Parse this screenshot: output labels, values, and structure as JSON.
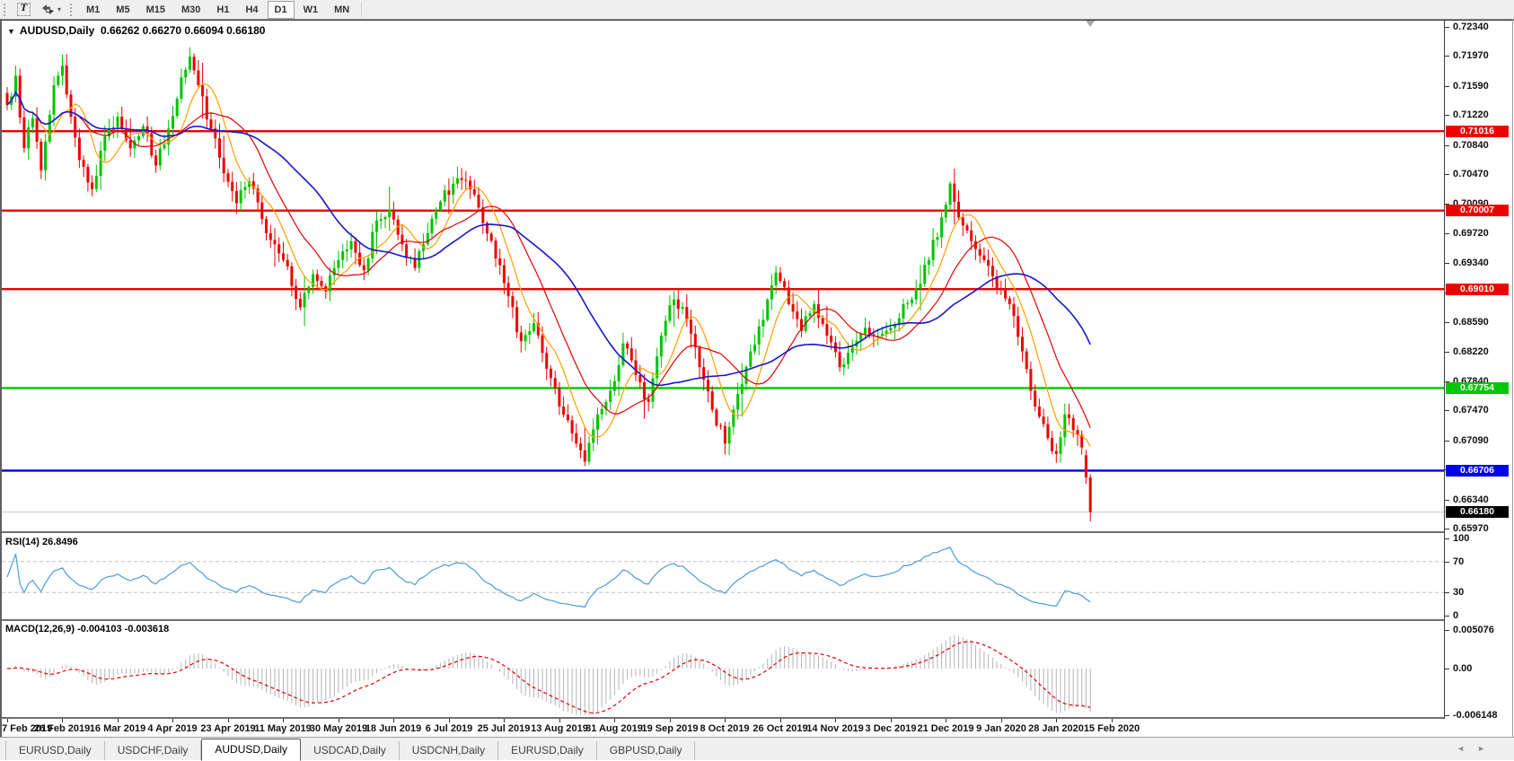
{
  "icons": {
    "text_tool_glyph": "T",
    "dropdown_caret": "▾",
    "collapse_arrow": "▼",
    "tab_scroll_left": "◄",
    "tab_scroll_right": "►"
  },
  "toolbar": {
    "timeframes": [
      {
        "label": "M1",
        "active": false
      },
      {
        "label": "M5",
        "active": false
      },
      {
        "label": "M15",
        "active": false
      },
      {
        "label": "M30",
        "active": false
      },
      {
        "label": "H1",
        "active": false
      },
      {
        "label": "H4",
        "active": false
      },
      {
        "label": "D1",
        "active": true
      },
      {
        "label": "W1",
        "active": false
      },
      {
        "label": "MN",
        "active": false
      }
    ]
  },
  "chart": {
    "symbol_period": "AUDUSD,Daily",
    "ohlc_text": "0.66262 0.66270 0.66094 0.66180"
  },
  "price_axis": {
    "ticks": [
      "0.72340",
      "0.71970",
      "0.71590",
      "0.71220",
      "0.70840",
      "0.70470",
      "0.70090",
      "0.69720",
      "0.69340",
      "0.68970",
      "0.68590",
      "0.68220",
      "0.67840",
      "0.67470",
      "0.67090",
      "0.66720",
      "0.66340",
      "0.65970"
    ]
  },
  "hlines": [
    {
      "price": 0.71016,
      "label": "0.71016",
      "color": "#ee0000"
    },
    {
      "price": 0.70007,
      "label": "0.70007",
      "color": "#ee0000"
    },
    {
      "price": 0.6901,
      "label": "0.69010",
      "color": "#ee0000"
    },
    {
      "price": 0.67754,
      "label": "0.67754",
      "color": "#00c800"
    },
    {
      "price": 0.66706,
      "label": "0.66706",
      "color": "#0000ee"
    }
  ],
  "current_price": {
    "label": "0.66180",
    "price": 0.6618,
    "line_color": "#c9c9c9",
    "box_color": "#000000"
  },
  "rsi": {
    "header": "RSI(14) 26.8496",
    "period": 14,
    "current": 26.8496,
    "axis_labels": [
      "100",
      "70",
      "30",
      "0"
    ],
    "axis_values": [
      100,
      70,
      30,
      0
    ],
    "dashed_levels": [
      70,
      30
    ],
    "line_color": "#4b9cd8"
  },
  "macd": {
    "header": "MACD(12,26,9) -0.004103 -0.003618",
    "fast": 12,
    "slow": 26,
    "signal": 9,
    "current_macd": -0.004103,
    "current_signal": -0.003618,
    "axis_labels": [
      "0.005076",
      "0.00",
      "-0.006148"
    ],
    "axis_values": [
      0.005076,
      0,
      -0.006148
    ],
    "histogram_color": "#b4b4b4",
    "signal_color": "#e00000"
  },
  "date_axis": [
    "7 Feb 2019",
    "26 Feb 2019",
    "16 Mar 2019",
    "4 Apr 2019",
    "23 Apr 2019",
    "11 May 2019",
    "30 May 2019",
    "18 Jun 2019",
    "6 Jul 2019",
    "25 Jul 2019",
    "13 Aug 2019",
    "31 Aug 2019",
    "19 Sep 2019",
    "8 Oct 2019",
    "26 Oct 2019",
    "14 Nov 2019",
    "3 Dec 2019",
    "21 Dec 2019",
    "9 Jan 2020",
    "28 Jan 2020",
    "15 Feb 2020"
  ],
  "tabs": [
    {
      "label": "EURUSD,Daily",
      "active": false
    },
    {
      "label": "USDCHF,Daily",
      "active": false
    },
    {
      "label": "AUDUSD,Daily",
      "active": true
    },
    {
      "label": "USDCAD,Daily",
      "active": false
    },
    {
      "label": "USDCNH,Daily",
      "active": false
    },
    {
      "label": "EURUSD,Daily",
      "active": false
    },
    {
      "label": "GBPUSD,Daily",
      "active": false
    }
  ],
  "chart_data": {
    "type": "candlestick",
    "symbol": "AUDUSD",
    "timeframe": "Daily",
    "ohlc_current": {
      "open": 0.66262,
      "high": 0.6627,
      "low": 0.66094,
      "close": 0.6618
    },
    "price_range": [
      0.6597,
      0.7234
    ],
    "num_candles": 256,
    "candles_per_date_interval": 13,
    "up_color": "#00c400",
    "down_color": "#ee0000",
    "moving_averages": [
      {
        "name": "fast",
        "period": 8,
        "color": "#ff9f00"
      },
      {
        "name": "medium",
        "period": 17,
        "color": "#e00000"
      },
      {
        "name": "slow",
        "period": 34,
        "color": "#1818c8"
      }
    ],
    "close_waypoints": [
      [
        0,
        0.7135
      ],
      [
        2,
        0.7172
      ],
      [
        4,
        0.708
      ],
      [
        6,
        0.7118
      ],
      [
        8,
        0.7052
      ],
      [
        11,
        0.716
      ],
      [
        13,
        0.7185
      ],
      [
        15,
        0.712
      ],
      [
        17,
        0.7065
      ],
      [
        20,
        0.7028
      ],
      [
        23,
        0.7095
      ],
      [
        26,
        0.712
      ],
      [
        29,
        0.708
      ],
      [
        32,
        0.7108
      ],
      [
        35,
        0.7058
      ],
      [
        38,
        0.7105
      ],
      [
        41,
        0.717
      ],
      [
        43,
        0.7196
      ],
      [
        45,
        0.716
      ],
      [
        48,
        0.7105
      ],
      [
        51,
        0.7048
      ],
      [
        54,
        0.701
      ],
      [
        57,
        0.7038
      ],
      [
        60,
        0.699
      ],
      [
        63,
        0.6958
      ],
      [
        66,
        0.693
      ],
      [
        69,
        0.6878
      ],
      [
        72,
        0.692
      ],
      [
        75,
        0.6898
      ],
      [
        78,
        0.6938
      ],
      [
        81,
        0.6962
      ],
      [
        84,
        0.6925
      ],
      [
        87,
        0.6988
      ],
      [
        90,
        0.7002
      ],
      [
        93,
        0.6958
      ],
      [
        96,
        0.6928
      ],
      [
        99,
        0.6972
      ],
      [
        102,
        0.7012
      ],
      [
        106,
        0.7042
      ],
      [
        109,
        0.7028
      ],
      [
        112,
        0.6985
      ],
      [
        115,
        0.694
      ],
      [
        118,
        0.6892
      ],
      [
        121,
        0.6835
      ],
      [
        124,
        0.6858
      ],
      [
        127,
        0.68
      ],
      [
        130,
        0.6752
      ],
      [
        133,
        0.6718
      ],
      [
        136,
        0.6682
      ],
      [
        139,
        0.6742
      ],
      [
        142,
        0.6772
      ],
      [
        145,
        0.6832
      ],
      [
        148,
        0.6792
      ],
      [
        151,
        0.6758
      ],
      [
        154,
        0.6842
      ],
      [
        157,
        0.6888
      ],
      [
        160,
        0.6862
      ],
      [
        163,
        0.6802
      ],
      [
        166,
        0.6748
      ],
      [
        169,
        0.6705
      ],
      [
        172,
        0.6768
      ],
      [
        175,
        0.6822
      ],
      [
        178,
        0.6862
      ],
      [
        181,
        0.6922
      ],
      [
        184,
        0.6882
      ],
      [
        187,
        0.6848
      ],
      [
        190,
        0.6882
      ],
      [
        193,
        0.6842
      ],
      [
        196,
        0.6802
      ],
      [
        199,
        0.6828
      ],
      [
        202,
        0.6852
      ],
      [
        205,
        0.6842
      ],
      [
        208,
        0.6852
      ],
      [
        211,
        0.6882
      ],
      [
        214,
        0.6902
      ],
      [
        217,
        0.6938
      ],
      [
        220,
        0.6992
      ],
      [
        222,
        0.7035
      ],
      [
        224,
        0.6992
      ],
      [
        227,
        0.6962
      ],
      [
        230,
        0.6938
      ],
      [
        233,
        0.6902
      ],
      [
        236,
        0.6882
      ],
      [
        239,
        0.6822
      ],
      [
        242,
        0.6752
      ],
      [
        245,
        0.6712
      ],
      [
        247,
        0.6692
      ],
      [
        249,
        0.6742
      ],
      [
        251,
        0.6722
      ],
      [
        253,
        0.67
      ],
      [
        254,
        0.6662
      ],
      [
        255,
        0.6618
      ]
    ]
  }
}
